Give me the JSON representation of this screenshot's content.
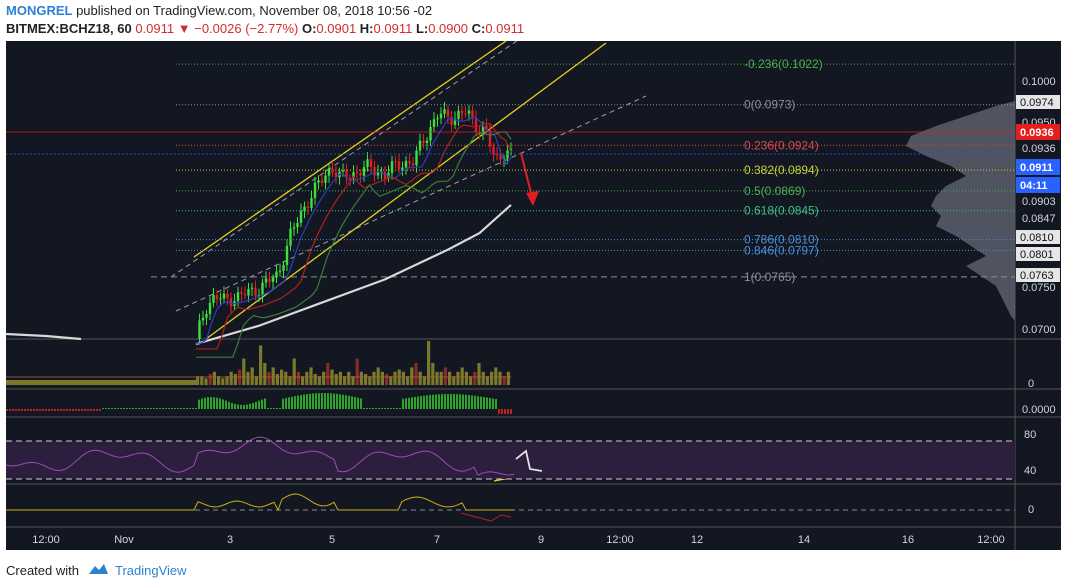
{
  "header": {
    "author": "MONGREL",
    "published": "published on TradingView.com, November 08, 2018 10:56 -02",
    "symbol": "BITMEX:BCHZ18, 60",
    "last": "0.0911",
    "change_arrow": "▼",
    "change": "−0.0026 (−2.77%)",
    "o_label": "O:",
    "o": "0.0901",
    "h_label": "H:",
    "h": "0.0911",
    "l_label": "L:",
    "l": "0.0900",
    "c_label": "C:",
    "c": "0.0911"
  },
  "footer": {
    "created_with": "Created with",
    "brand": "TradingView",
    "logo_icon": "tradingview-logo-icon"
  },
  "colors": {
    "background": "#131722",
    "up": "#3ee03e",
    "down": "#e02020",
    "fib": "#4caf50",
    "channel": "#e5d21a",
    "price_badge": "#e41e1e",
    "current_badge": "#2962ff"
  },
  "chart_data": {
    "type": "candlestick",
    "x_ticks": [
      "12:00",
      "Nov",
      "3",
      "5",
      "7",
      "9",
      "12:00",
      "12",
      "14",
      "16",
      "12:00"
    ],
    "price_axis": {
      "ticks": [
        "0.1000",
        "0.0974",
        "0.0950",
        "0.0936",
        "0.0903",
        "0.0847",
        "0.0810",
        "0.0801",
        "0.0763",
        "0.0750",
        "0.0700"
      ],
      "badges": [
        {
          "text": "0.0936",
          "color": "#e41e1e"
        },
        {
          "text": "0.0911",
          "color": "#2962ff"
        },
        {
          "text": "04:11",
          "color": "#2962ff"
        }
      ],
      "ylim": [
        0.069,
        0.105
      ]
    },
    "fibonacci": [
      {
        "label": "-0.236(0.1022)",
        "level": -0.236,
        "price": 0.1022
      },
      {
        "label": "0(0.0973)",
        "level": 0,
        "price": 0.0973
      },
      {
        "label": "0.236(0.0924)",
        "level": 0.236,
        "price": 0.0924
      },
      {
        "label": "0.382(0.0894)",
        "level": 0.382,
        "price": 0.0894
      },
      {
        "label": "0.5(0.0869)",
        "level": 0.5,
        "price": 0.0869
      },
      {
        "label": "0.618(0.0845)",
        "level": 0.618,
        "price": 0.0845
      },
      {
        "label": "0.786(0.0810)",
        "level": 0.786,
        "price": 0.081
      },
      {
        "label": "0.846(0.0797)",
        "level": 0.846,
        "price": 0.0797
      },
      {
        "label": "1(0.0765)",
        "level": 1,
        "price": 0.0765
      }
    ],
    "price_path": [
      {
        "t": 0.0,
        "p": 0.069
      },
      {
        "t": 0.03,
        "p": 0.0728
      },
      {
        "t": 0.06,
        "p": 0.0741
      },
      {
        "t": 0.09,
        "p": 0.0737
      },
      {
        "t": 0.14,
        "p": 0.0742
      },
      {
        "t": 0.2,
        "p": 0.0751
      },
      {
        "t": 0.26,
        "p": 0.0768
      },
      {
        "t": 0.3,
        "p": 0.0815
      },
      {
        "t": 0.34,
        "p": 0.0847
      },
      {
        "t": 0.38,
        "p": 0.0872
      },
      {
        "t": 0.43,
        "p": 0.0898
      },
      {
        "t": 0.46,
        "p": 0.0884
      },
      {
        "t": 0.5,
        "p": 0.089
      },
      {
        "t": 0.55,
        "p": 0.0898
      },
      {
        "t": 0.6,
        "p": 0.0888
      },
      {
        "t": 0.64,
        "p": 0.0902
      },
      {
        "t": 0.69,
        "p": 0.0903
      },
      {
        "t": 0.72,
        "p": 0.093
      },
      {
        "t": 0.77,
        "p": 0.0961
      },
      {
        "t": 0.82,
        "p": 0.0958
      },
      {
        "t": 0.86,
        "p": 0.0964
      },
      {
        "t": 0.89,
        "p": 0.0948
      },
      {
        "t": 0.92,
        "p": 0.094
      },
      {
        "t": 0.95,
        "p": 0.0905
      },
      {
        "t": 0.98,
        "p": 0.0918
      },
      {
        "t": 1.0,
        "p": 0.0911
      }
    ],
    "ma_white": [
      {
        "t": 0.0,
        "p": 0.0684
      },
      {
        "t": 0.2,
        "p": 0.0706
      },
      {
        "t": 0.4,
        "p": 0.0734
      },
      {
        "t": 0.6,
        "p": 0.0762
      },
      {
        "t": 0.8,
        "p": 0.0798
      },
      {
        "t": 0.9,
        "p": 0.0818
      },
      {
        "t": 1.0,
        "p": 0.0852
      }
    ],
    "volume": [
      0.2,
      0.2,
      0.15,
      0.25,
      0.3,
      0.2,
      0.15,
      0.2,
      0.3,
      0.25,
      0.35,
      0.6,
      0.3,
      0.4,
      0.2,
      0.9,
      0.5,
      0.3,
      0.4,
      0.25,
      0.35,
      0.3,
      0.2,
      0.6,
      0.3,
      0.2,
      0.3,
      0.4,
      0.25,
      0.2,
      0.3,
      0.5,
      0.35,
      0.25,
      0.3,
      0.2,
      0.3,
      0.2,
      0.6,
      0.3,
      0.25,
      0.2,
      0.3,
      0.4,
      0.3,
      0.25,
      0.2,
      0.3,
      0.35,
      0.3,
      0.2,
      0.4,
      0.5,
      0.3,
      0.2,
      1.0,
      0.5,
      0.3,
      0.3,
      0.4,
      0.3,
      0.2,
      0.3,
      0.4,
      0.3,
      0.2,
      0.3,
      0.5,
      0.3,
      0.2,
      0.3,
      0.4,
      0.3,
      0.2,
      0.3
    ],
    "volume_axis_label": "0",
    "macd_axis_label": "0.0000",
    "rsi_axis": [
      "80",
      "40"
    ],
    "osc_axis": "0"
  }
}
